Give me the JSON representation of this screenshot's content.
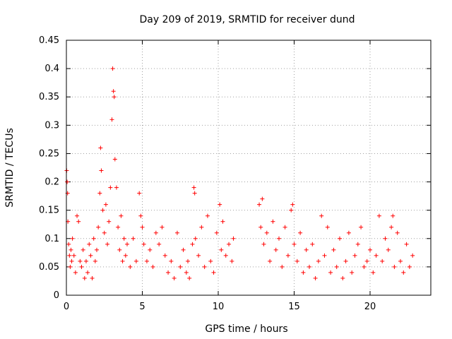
{
  "chart_data": {
    "type": "scatter",
    "title": "Day 209 of 2019, SRMTID for receiver dund",
    "xlabel": "GPS time / hours",
    "ylabel": "SRMTID / TECUs",
    "xlim": [
      0,
      24
    ],
    "ylim": [
      0,
      0.45
    ],
    "grid": true,
    "marker": "plus",
    "color": "#ff0000",
    "xticks": [
      0,
      5,
      10,
      15,
      20
    ],
    "xtick_labels": [
      "0",
      "5",
      "10",
      "15",
      "20"
    ],
    "yticks": [
      0,
      0.05,
      0.1,
      0.15,
      0.2,
      0.25,
      0.3,
      0.35,
      0.4,
      0.45
    ],
    "ytick_labels": [
      "0",
      "0.05",
      "0.1",
      "0.15",
      "0.2",
      "0.25",
      "0.3",
      "0.35",
      "0.4",
      "0.45"
    ],
    "series": [
      {
        "name": "SRMTID",
        "points": [
          [
            0.02,
            0.22
          ],
          [
            0.05,
            0.2
          ],
          [
            0.08,
            0.18
          ],
          [
            0.1,
            0.13
          ],
          [
            0.15,
            0.09
          ],
          [
            0.2,
            0.07
          ],
          [
            0.25,
            0.05
          ],
          [
            0.3,
            0.08
          ],
          [
            0.35,
            0.06
          ],
          [
            0.4,
            0.1
          ],
          [
            0.5,
            0.07
          ],
          [
            0.6,
            0.04
          ],
          [
            0.7,
            0.14
          ],
          [
            0.8,
            0.13
          ],
          [
            0.9,
            0.06
          ],
          [
            1.0,
            0.05
          ],
          [
            1.1,
            0.08
          ],
          [
            1.2,
            0.03
          ],
          [
            1.3,
            0.06
          ],
          [
            1.4,
            0.04
          ],
          [
            1.5,
            0.09
          ],
          [
            1.6,
            0.07
          ],
          [
            1.7,
            0.03
          ],
          [
            1.8,
            0.1
          ],
          [
            1.9,
            0.06
          ],
          [
            2.0,
            0.08
          ],
          [
            2.1,
            0.12
          ],
          [
            2.2,
            0.18
          ],
          [
            2.25,
            0.26
          ],
          [
            2.3,
            0.22
          ],
          [
            2.4,
            0.15
          ],
          [
            2.5,
            0.11
          ],
          [
            2.6,
            0.16
          ],
          [
            2.7,
            0.09
          ],
          [
            2.8,
            0.13
          ],
          [
            2.9,
            0.19
          ],
          [
            3.0,
            0.31
          ],
          [
            3.05,
            0.4
          ],
          [
            3.1,
            0.36
          ],
          [
            3.15,
            0.35
          ],
          [
            3.2,
            0.24
          ],
          [
            3.3,
            0.19
          ],
          [
            3.4,
            0.12
          ],
          [
            3.5,
            0.08
          ],
          [
            3.6,
            0.14
          ],
          [
            3.7,
            0.06
          ],
          [
            3.8,
            0.1
          ],
          [
            3.9,
            0.07
          ],
          [
            4.0,
            0.09
          ],
          [
            4.2,
            0.05
          ],
          [
            4.4,
            0.1
          ],
          [
            4.6,
            0.06
          ],
          [
            4.8,
            0.18
          ],
          [
            4.9,
            0.14
          ],
          [
            5.0,
            0.12
          ],
          [
            5.1,
            0.09
          ],
          [
            5.3,
            0.06
          ],
          [
            5.5,
            0.08
          ],
          [
            5.7,
            0.05
          ],
          [
            5.9,
            0.11
          ],
          [
            6.1,
            0.09
          ],
          [
            6.3,
            0.12
          ],
          [
            6.5,
            0.07
          ],
          [
            6.7,
            0.04
          ],
          [
            6.9,
            0.06
          ],
          [
            7.1,
            0.03
          ],
          [
            7.3,
            0.11
          ],
          [
            7.5,
            0.05
          ],
          [
            7.7,
            0.08
          ],
          [
            7.9,
            0.04
          ],
          [
            8.0,
            0.06
          ],
          [
            8.1,
            0.03
          ],
          [
            8.3,
            0.09
          ],
          [
            8.4,
            0.19
          ],
          [
            8.45,
            0.18
          ],
          [
            8.5,
            0.1
          ],
          [
            8.7,
            0.07
          ],
          [
            8.9,
            0.12
          ],
          [
            9.1,
            0.05
          ],
          [
            9.3,
            0.14
          ],
          [
            9.5,
            0.06
          ],
          [
            9.7,
            0.04
          ],
          [
            9.9,
            0.11
          ],
          [
            10.1,
            0.16
          ],
          [
            10.2,
            0.08
          ],
          [
            10.3,
            0.13
          ],
          [
            10.5,
            0.07
          ],
          [
            10.7,
            0.09
          ],
          [
            10.9,
            0.06
          ],
          [
            11.0,
            0.1
          ],
          [
            12.7,
            0.16
          ],
          [
            12.8,
            0.12
          ],
          [
            12.9,
            0.17
          ],
          [
            13.0,
            0.09
          ],
          [
            13.2,
            0.11
          ],
          [
            13.4,
            0.06
          ],
          [
            13.6,
            0.13
          ],
          [
            13.8,
            0.08
          ],
          [
            14.0,
            0.1
          ],
          [
            14.2,
            0.05
          ],
          [
            14.4,
            0.12
          ],
          [
            14.6,
            0.07
          ],
          [
            14.8,
            0.15
          ],
          [
            14.9,
            0.16
          ],
          [
            15.0,
            0.09
          ],
          [
            15.2,
            0.06
          ],
          [
            15.4,
            0.11
          ],
          [
            15.6,
            0.04
          ],
          [
            15.8,
            0.08
          ],
          [
            16.0,
            0.05
          ],
          [
            16.2,
            0.09
          ],
          [
            16.4,
            0.03
          ],
          [
            16.6,
            0.06
          ],
          [
            16.8,
            0.14
          ],
          [
            17.0,
            0.07
          ],
          [
            17.2,
            0.12
          ],
          [
            17.4,
            0.04
          ],
          [
            17.6,
            0.08
          ],
          [
            17.8,
            0.05
          ],
          [
            18.0,
            0.1
          ],
          [
            18.2,
            0.03
          ],
          [
            18.4,
            0.06
          ],
          [
            18.6,
            0.11
          ],
          [
            18.8,
            0.04
          ],
          [
            19.0,
            0.07
          ],
          [
            19.2,
            0.09
          ],
          [
            19.4,
            0.12
          ],
          [
            19.6,
            0.05
          ],
          [
            19.8,
            0.06
          ],
          [
            20.0,
            0.08
          ],
          [
            20.2,
            0.04
          ],
          [
            20.4,
            0.07
          ],
          [
            20.6,
            0.14
          ],
          [
            20.8,
            0.06
          ],
          [
            21.0,
            0.1
          ],
          [
            21.2,
            0.08
          ],
          [
            21.4,
            0.12
          ],
          [
            21.5,
            0.14
          ],
          [
            21.6,
            0.05
          ],
          [
            21.8,
            0.11
          ],
          [
            22.0,
            0.06
          ],
          [
            22.2,
            0.04
          ],
          [
            22.4,
            0.09
          ],
          [
            22.6,
            0.05
          ],
          [
            22.8,
            0.07
          ]
        ]
      }
    ]
  }
}
